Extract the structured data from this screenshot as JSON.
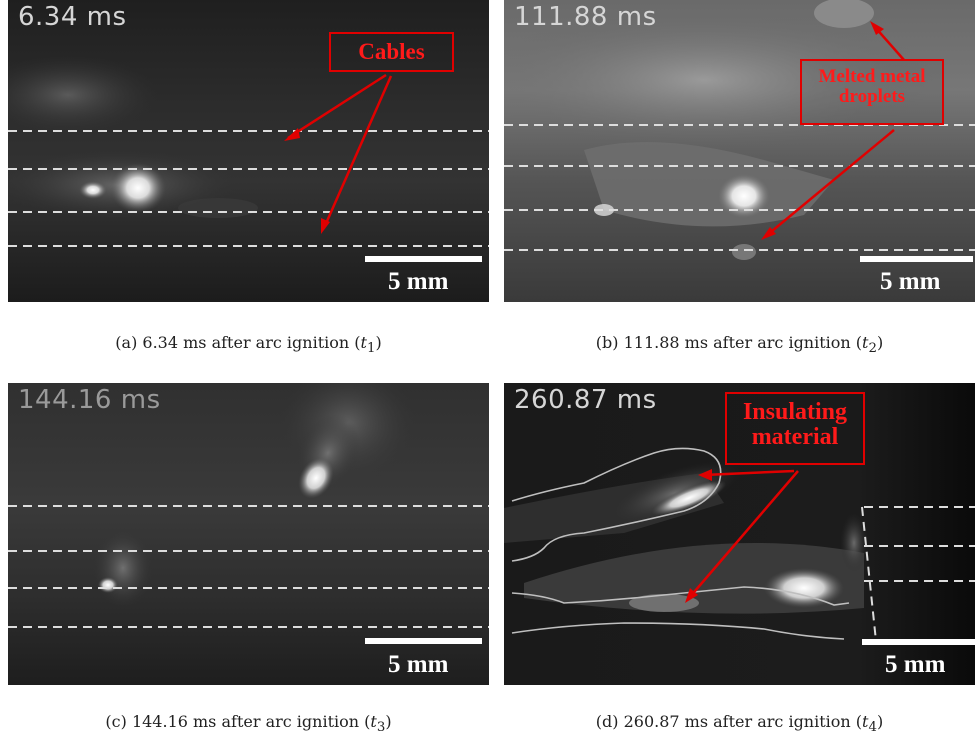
{
  "panels": [
    {
      "timestamp": "6.34 ms",
      "scale_label": "5 mm",
      "callout": "Cables",
      "caption_text": "(a) 6.34 ms after arc ignition (",
      "caption_var": "t",
      "caption_sub": "1",
      "caption_end": ")"
    },
    {
      "timestamp": "111.88 ms",
      "scale_label": "5 mm",
      "callout_line1": "Melted metal",
      "callout_line2": "droplets",
      "caption_text": "(b) 111.88 ms after arc ignition (",
      "caption_var": "t",
      "caption_sub": "2",
      "caption_end": ")"
    },
    {
      "timestamp": "144.16 ms",
      "scale_label": "5 mm",
      "caption_text": "(c) 144.16 ms after arc ignition (",
      "caption_var": "t",
      "caption_sub": "3",
      "caption_end": ")"
    },
    {
      "timestamp": "260.87 ms",
      "scale_label": "5 mm",
      "callout_line1": "Insulating",
      "callout_line2": "material",
      "caption_text": "(d) 260.87 ms after arc ignition (",
      "caption_var": "t",
      "caption_sub": "4",
      "caption_end": ")"
    }
  ],
  "colors": {
    "annotation": "#e00000",
    "guide_lines": "#dddddd"
  }
}
